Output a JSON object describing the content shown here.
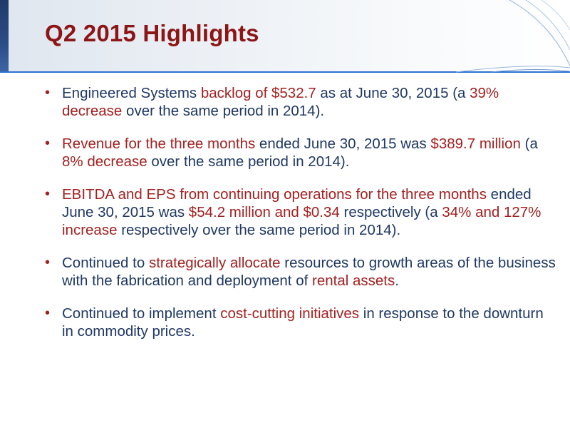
{
  "slide": {
    "title": "Q2 2015 Highlights",
    "bullet_symbol": "•",
    "colors": {
      "title": "#8c1515",
      "text": "#1f3864",
      "highlight": "#a32020",
      "accent_bar": "#2b4d86"
    },
    "bullets": [
      {
        "segments": [
          {
            "text": "Engineered Systems ",
            "hl": false
          },
          {
            "text": "backlog of $532.7",
            "hl": true
          },
          {
            "text": " as at June 30, 2015 (a ",
            "hl": false
          },
          {
            "text": "39% decrease",
            "hl": true
          },
          {
            "text": " over the same period in 2014).",
            "hl": false
          }
        ]
      },
      {
        "segments": [
          {
            "text": "Revenue for the three months",
            "hl": true
          },
          {
            "text": " ended June 30, 2015 was ",
            "hl": false
          },
          {
            "text": "$389.7 million",
            "hl": true
          },
          {
            "text": " (a ",
            "hl": false
          },
          {
            "text": "8% decrease",
            "hl": true
          },
          {
            "text": " over the same period in 2014).",
            "hl": false
          }
        ]
      },
      {
        "segments": [
          {
            "text": "EBITDA and EPS from continuing operations for the three months",
            "hl": true
          },
          {
            "text": " ended June 30, 2015 was ",
            "hl": false
          },
          {
            "text": "$54.2 million and $0.34",
            "hl": true
          },
          {
            "text": " respectively (a ",
            "hl": false
          },
          {
            "text": "34% and 127% increase",
            "hl": true
          },
          {
            "text": " respectively over the same period in 2014).",
            "hl": false
          }
        ]
      },
      {
        "segments": [
          {
            "text": "Continued to ",
            "hl": false
          },
          {
            "text": "strategically allocate",
            "hl": true
          },
          {
            "text": " resources to growth areas of the business with the fabrication and deployment of ",
            "hl": false
          },
          {
            "text": "rental assets",
            "hl": true
          },
          {
            "text": ".",
            "hl": false
          }
        ]
      },
      {
        "segments": [
          {
            "text": "Continued to implement ",
            "hl": false
          },
          {
            "text": "cost-cutting initiatives",
            "hl": true
          },
          {
            "text": " in response to the downturn in commodity prices.",
            "hl": false
          }
        ]
      }
    ]
  }
}
